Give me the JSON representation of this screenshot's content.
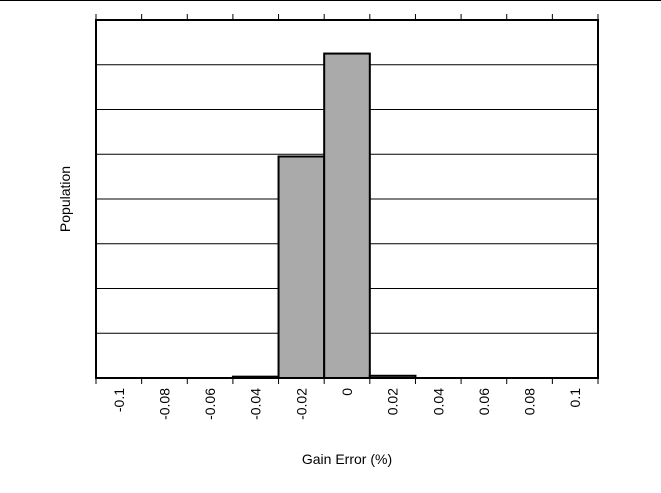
{
  "chart_data": {
    "type": "bar",
    "title": "",
    "xlabel": "Gain Error (%)",
    "ylabel": "Population",
    "bin_edges": [
      -0.11,
      -0.09,
      -0.07,
      -0.05,
      -0.03,
      -0.01,
      0.01,
      0.03,
      0.05,
      0.07,
      0.09,
      0.11
    ],
    "values": [
      0,
      0,
      0,
      0.3,
      49.5,
      72.5,
      0.5,
      0,
      0,
      0,
      0
    ],
    "xticks": [
      -0.1,
      -0.08,
      -0.06,
      -0.04,
      -0.02,
      0,
      0.02,
      0.04,
      0.06,
      0.08,
      0.1
    ],
    "xtick_labels": [
      "-0.1",
      "-0.08",
      "-0.06",
      "-0.04",
      "-0.02",
      "0",
      "0.02",
      "0.04",
      "0.06",
      "0.08",
      "0.1"
    ],
    "xlim": [
      -0.11,
      0.11
    ],
    "ylim": [
      0,
      80
    ],
    "y_gridlines": [
      10,
      20,
      30,
      40,
      50,
      60,
      70
    ],
    "y_tick_labels_shown": false,
    "grid": true,
    "bar_color": "#aaaaaa",
    "edge_color": "#000000"
  }
}
